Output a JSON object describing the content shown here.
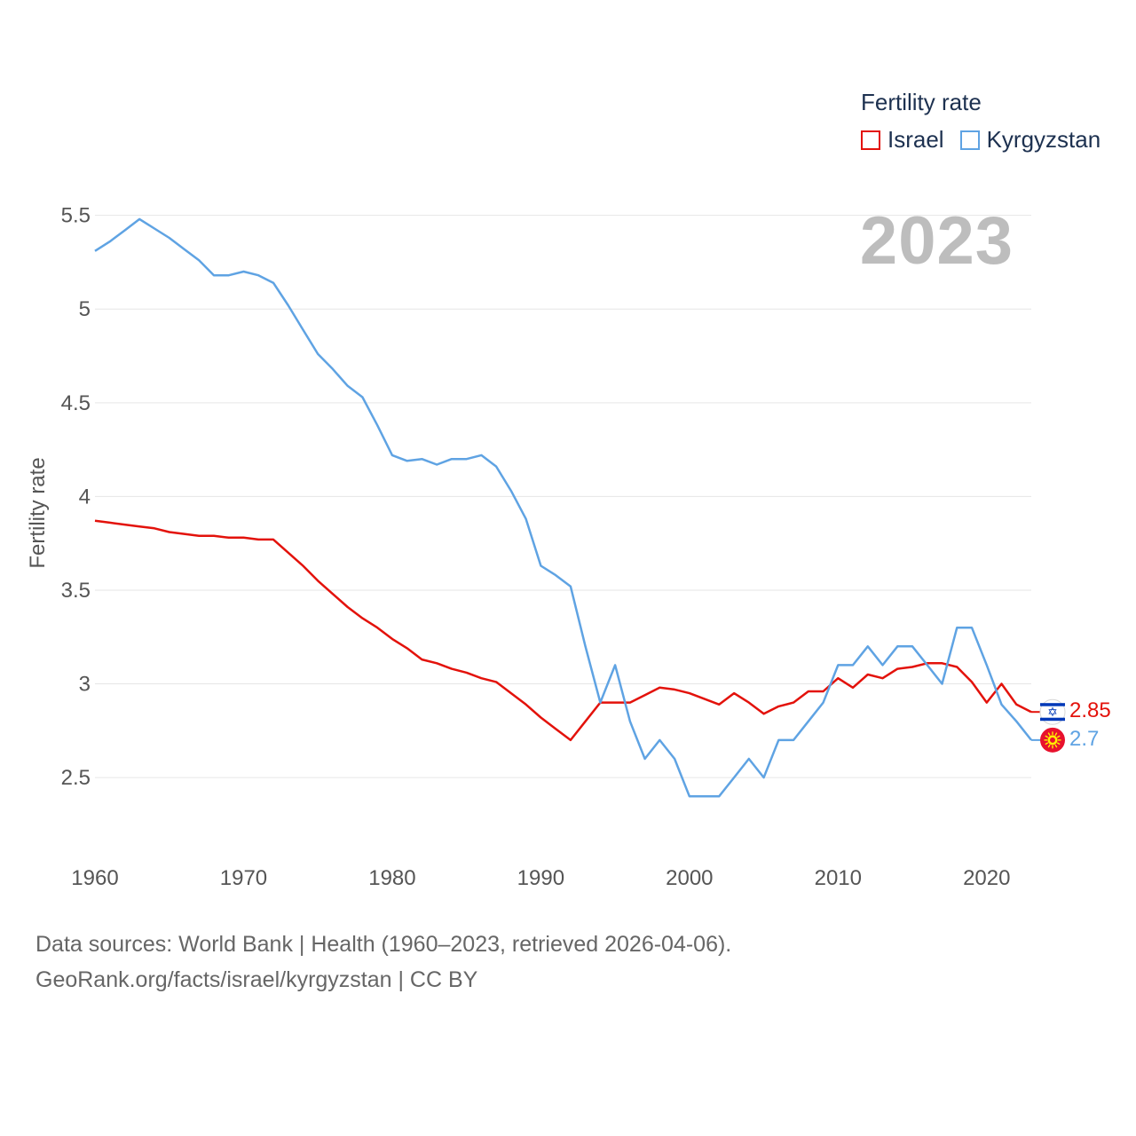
{
  "chart_data": {
    "type": "line",
    "title": "2023",
    "legend_title": "Fertility rate",
    "ylabel": "Fertility rate",
    "xlabel": "",
    "xlim": [
      1960,
      2023
    ],
    "ylim": [
      2.15,
      5.65
    ],
    "x_ticks": [
      1960,
      1970,
      1980,
      1990,
      2000,
      2010,
      2020
    ],
    "y_ticks": [
      2.5,
      3,
      3.5,
      4,
      4.5,
      5,
      5.5
    ],
    "y_tick_labels": [
      "2.5",
      "3",
      "3.5",
      "4",
      "4.5",
      "5",
      "5.5"
    ],
    "x": [
      1960,
      1961,
      1962,
      1963,
      1964,
      1965,
      1966,
      1967,
      1968,
      1969,
      1970,
      1971,
      1972,
      1973,
      1974,
      1975,
      1976,
      1977,
      1978,
      1979,
      1980,
      1981,
      1982,
      1983,
      1984,
      1985,
      1986,
      1987,
      1988,
      1989,
      1990,
      1991,
      1992,
      1993,
      1994,
      1995,
      1996,
      1997,
      1998,
      1999,
      2000,
      2001,
      2002,
      2003,
      2004,
      2005,
      2006,
      2007,
      2008,
      2009,
      2010,
      2011,
      2012,
      2013,
      2014,
      2015,
      2016,
      2017,
      2018,
      2019,
      2020,
      2021,
      2022,
      2023
    ],
    "series": [
      {
        "name": "Israel",
        "color": "#e3120b",
        "end_label": "2.85",
        "icon": "israel-flag-icon",
        "values": [
          3.87,
          3.86,
          3.85,
          3.84,
          3.83,
          3.81,
          3.8,
          3.79,
          3.79,
          3.78,
          3.78,
          3.77,
          3.77,
          3.7,
          3.63,
          3.55,
          3.48,
          3.41,
          3.35,
          3.3,
          3.24,
          3.19,
          3.13,
          3.11,
          3.08,
          3.06,
          3.03,
          3.01,
          2.95,
          2.89,
          2.82,
          2.76,
          2.7,
          2.8,
          2.9,
          2.9,
          2.9,
          2.94,
          2.98,
          2.97,
          2.95,
          2.92,
          2.89,
          2.95,
          2.9,
          2.84,
          2.88,
          2.9,
          2.96,
          2.96,
          3.03,
          2.98,
          3.05,
          3.03,
          3.08,
          3.09,
          3.11,
          3.11,
          3.09,
          3.01,
          2.9,
          3.0,
          2.89,
          2.85
        ]
      },
      {
        "name": "Kyrgyzstan",
        "color": "#5fa3e3",
        "end_label": "2.7",
        "icon": "kyrgyzstan-flag-icon",
        "values": [
          5.31,
          5.36,
          5.42,
          5.48,
          5.43,
          5.38,
          5.32,
          5.26,
          5.18,
          5.18,
          5.2,
          5.18,
          5.14,
          5.02,
          4.89,
          4.76,
          4.68,
          4.59,
          4.53,
          4.38,
          4.22,
          4.19,
          4.2,
          4.17,
          4.2,
          4.2,
          4.22,
          4.16,
          4.03,
          3.88,
          3.63,
          3.58,
          3.52,
          3.2,
          2.9,
          3.1,
          2.8,
          2.6,
          2.7,
          2.6,
          2.4,
          2.4,
          2.4,
          2.5,
          2.6,
          2.5,
          2.7,
          2.7,
          2.8,
          2.9,
          3.1,
          3.1,
          3.2,
          3.1,
          3.2,
          3.2,
          3.1,
          3.0,
          3.3,
          3.3,
          3.1,
          2.89,
          2.8,
          2.7
        ]
      }
    ]
  },
  "source": {
    "line1": "Data sources: World Bank | Health (1960–2023, retrieved 2026-04-06).",
    "line2": "GeoRank.org/facts/israel/kyrgyzstan | CC BY"
  }
}
